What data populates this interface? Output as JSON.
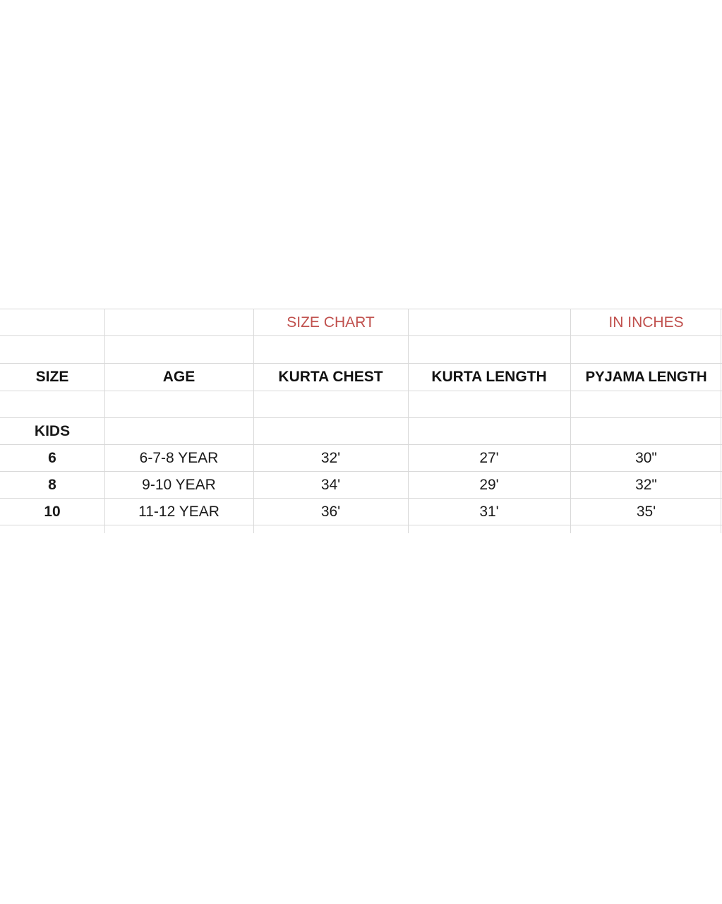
{
  "sheet": {
    "title": "SIZE CHART",
    "unit_note": "IN INCHES",
    "accent_color": "#c0504d",
    "headers": [
      "SIZE",
      "AGE",
      "KURTA CHEST",
      "KURTA LENGTH",
      "PYJAMA LENGTH"
    ],
    "group_label": "KIDS",
    "rows": [
      {
        "size": "6",
        "age": "6-7-8 YEAR",
        "kurta_chest": "32'",
        "kurta_length": "27'",
        "pyjama_length": "30\""
      },
      {
        "size": "8",
        "age": "9-10 YEAR",
        "kurta_chest": "34'",
        "kurta_length": "29'",
        "pyjama_length": "32\""
      },
      {
        "size": "10",
        "age": "11-12 YEAR",
        "kurta_chest": "36'",
        "kurta_length": "31'",
        "pyjama_length": "35'"
      }
    ]
  }
}
